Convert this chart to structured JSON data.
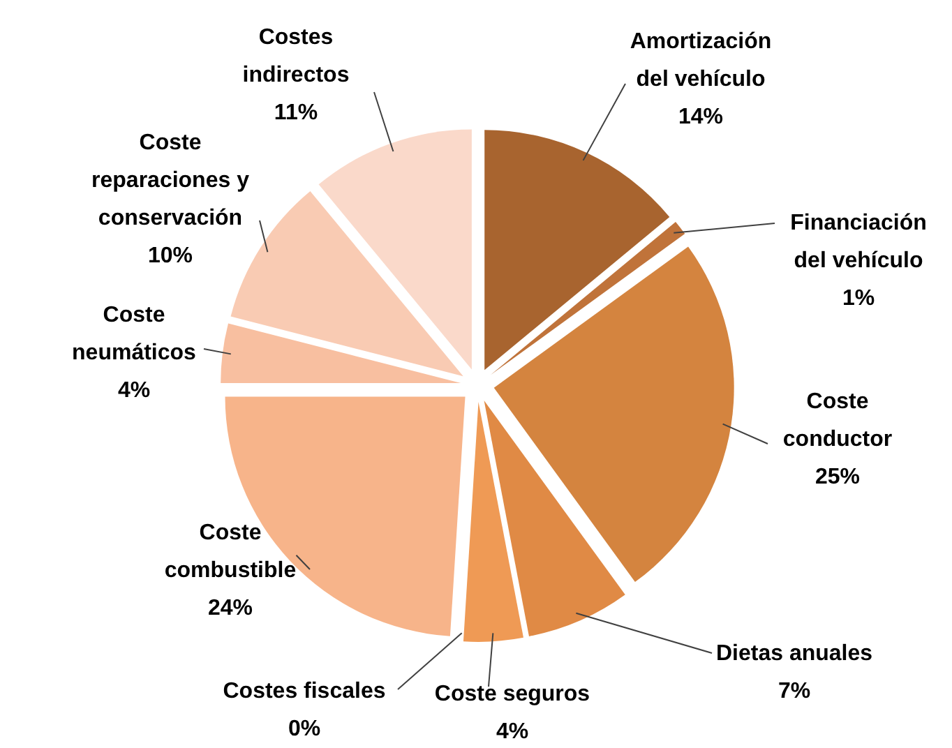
{
  "chart_data": {
    "type": "pie",
    "categories": [
      "Amortización del vehículo",
      "Financiación del vehículo",
      "Coste conductor",
      "Dietas anuales",
      "Coste seguros",
      "Costes fiscales",
      "Coste combustible",
      "Coste neumáticos",
      "Coste reparaciones y conservación",
      "Costes indirectos"
    ],
    "values": [
      14,
      1,
      25,
      7,
      4,
      0,
      24,
      4,
      10,
      11
    ],
    "value_labels": [
      "14%",
      "1%",
      "25%",
      "7%",
      "4%",
      "0%",
      "24%",
      "4%",
      "10%",
      "11%"
    ],
    "colors": [
      "#a8642f",
      "#c0733a",
      "#d4843f",
      "#e08a45",
      "#ef9a55",
      "#f0a060",
      "#f7b48a",
      "#f8bfa0",
      "#f9cbb3",
      "#fad9ca"
    ],
    "legend": false
  }
}
